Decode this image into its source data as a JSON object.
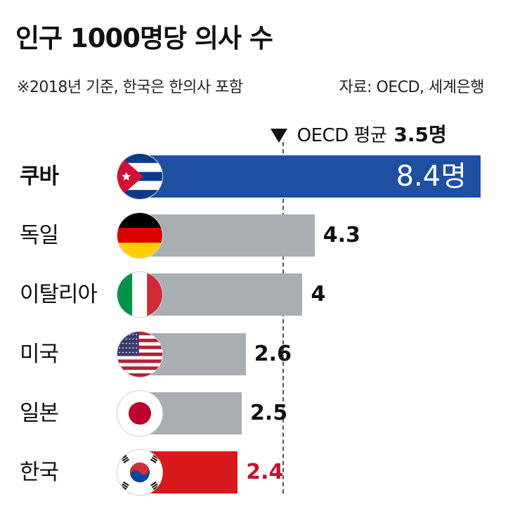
{
  "title": "인구 1000명당 의사 수",
  "note": "※2018년 기준, 한국은 한의사 포함",
  "source": "자료: OECD, 세계은행",
  "average": {
    "label": "OECD 평균",
    "value_label": "3.5명",
    "value": 3.5
  },
  "colors": {
    "highlight": "#1f4fa0",
    "default": "#a9aeb2",
    "korea": "#d7191c",
    "korea_value": "#c8102e"
  },
  "chart_data": {
    "type": "bar",
    "orientation": "horizontal",
    "title": "인구 1000명당 의사 수",
    "unit": "명",
    "categories": [
      "쿠바",
      "독일",
      "이탈리아",
      "미국",
      "일본",
      "한국"
    ],
    "values": [
      8.4,
      4.3,
      4,
      2.6,
      2.5,
      2.4
    ],
    "value_labels": [
      "8.4명",
      "4.3",
      "4",
      "2.6",
      "2.5",
      "2.4"
    ],
    "flags": [
      "cuba-flag-icon",
      "germany-flag-icon",
      "italy-flag-icon",
      "usa-flag-icon",
      "japan-flag-icon",
      "korea-flag-icon"
    ],
    "reference_line": {
      "label": "OECD 평균",
      "value": 3.5
    },
    "xlim": [
      0,
      8.4
    ],
    "grid": false,
    "legend": "none"
  }
}
